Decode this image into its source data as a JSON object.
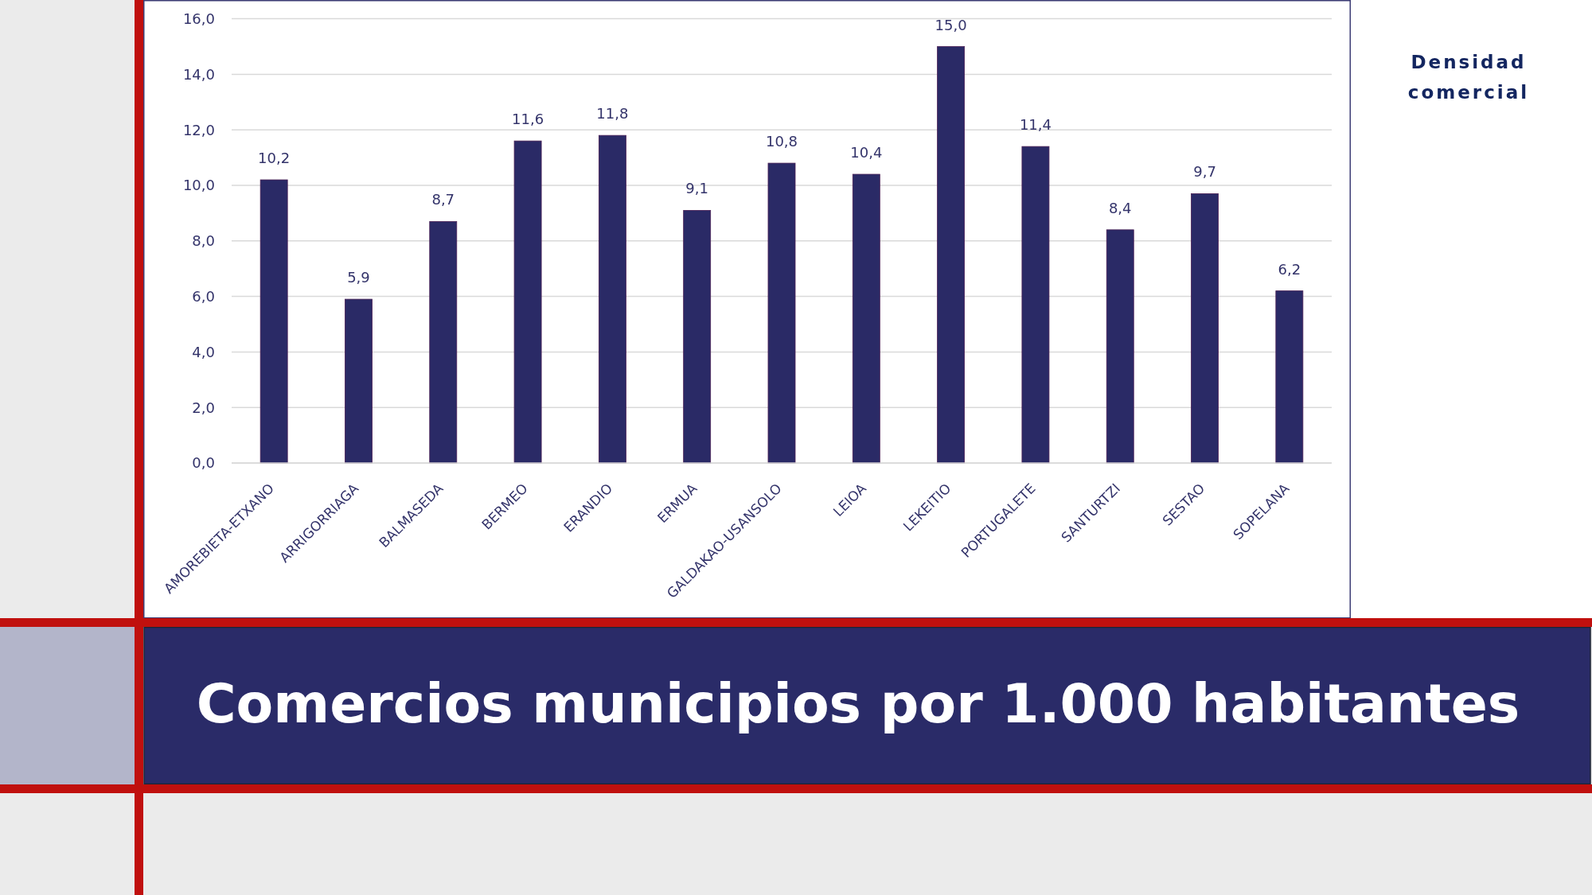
{
  "chart_data": {
    "type": "bar",
    "title": "Comercios municipios por 1.000 habitantes",
    "subtitle": "Densidad comercial",
    "categories": [
      "AMOREBIETA-ETXANO",
      "ARRIGORRIAGA",
      "BALMASEDA",
      "BERMEO",
      "ERANDIO",
      "ERMUA",
      "GALDAKAO-USANSOLO",
      "LEIOA",
      "LEKEITIO",
      "PORTUGALETE",
      "SANTURTZI",
      "SESTAO",
      "SOPELANA"
    ],
    "values": [
      10.2,
      5.9,
      8.7,
      11.6,
      11.8,
      9.1,
      10.8,
      10.4,
      15.0,
      11.4,
      8.4,
      9.7,
      6.2
    ],
    "value_labels": [
      "10,2",
      "5,9",
      "8,7",
      "11,6",
      "11,8",
      "9,1",
      "10,8",
      "10,4",
      "15,0",
      "11,4",
      "8,4",
      "9,7",
      "6,2"
    ],
    "color": "#2a2a66",
    "ylim": [
      0,
      16
    ],
    "yticks": [
      {
        "value": 0,
        "label": "0,0"
      },
      {
        "value": 2,
        "label": "2,0"
      },
      {
        "value": 4,
        "label": "4,0"
      },
      {
        "value": 6,
        "label": "6,0"
      },
      {
        "value": 8,
        "label": "8,0"
      },
      {
        "value": 10,
        "label": "10,0"
      },
      {
        "value": 12,
        "label": "12,0"
      },
      {
        "value": 14,
        "label": "14,0"
      },
      {
        "value": 16,
        "label": "16,0"
      }
    ],
    "grid": "y"
  }
}
